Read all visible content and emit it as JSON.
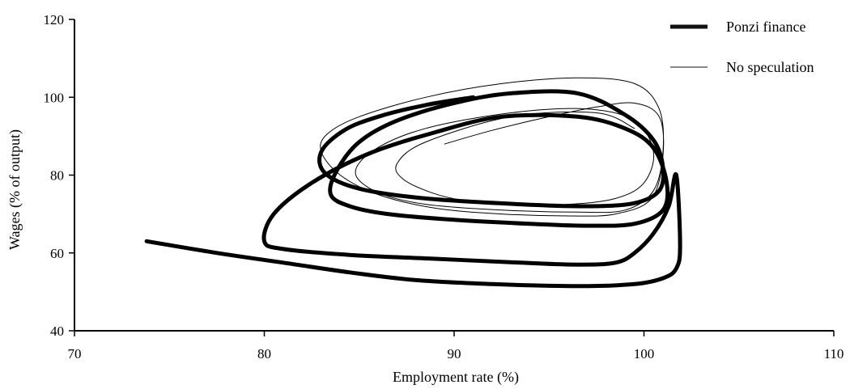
{
  "chart_data": {
    "type": "line",
    "title": "",
    "xlabel": "Employment rate (%)",
    "ylabel": "Wages (% of output)",
    "xlim": [
      70,
      110
    ],
    "ylim": [
      40,
      120
    ],
    "xticks": [
      70,
      80,
      90,
      100,
      110
    ],
    "yticks": [
      40,
      60,
      80,
      100,
      120
    ],
    "legend": {
      "position": "top-right",
      "entries": [
        {
          "label": "Ponzi finance",
          "style": "thick"
        },
        {
          "label": "No speculation",
          "style": "thin"
        }
      ]
    },
    "series": [
      {
        "name": "Ponzi finance",
        "color": "#111111",
        "x": [
          91.0,
          88.5,
          86.0,
          84.2,
          83.0,
          83.2,
          85.0,
          88.5,
          93.5,
          97.0,
          99.5,
          100.8,
          101.0,
          100.5,
          99.0,
          96.5,
          93.0,
          90.0,
          87.0,
          85.0,
          83.8,
          83.5,
          84.5,
          86.5,
          90.0,
          94.0,
          97.0,
          99.5,
          101.0,
          101.2,
          100.5,
          99.0,
          96.5,
          92.5,
          89.0,
          85.5,
          82.5,
          80.5,
          80.0,
          81.0,
          84.5,
          89.0,
          93.5,
          96.5,
          98.5,
          99.5,
          100.5,
          101.3,
          101.7,
          101.9,
          101.7,
          101.0,
          99.5,
          96.5,
          92.0,
          88.0,
          84.5,
          81.0,
          77.5,
          73.8
        ],
        "y": [
          100.0,
          98.0,
          95.0,
          91.5,
          86.0,
          80.5,
          76.5,
          74.0,
          72.5,
          72.0,
          72.8,
          76.0,
          82.0,
          89.0,
          95.5,
          101.0,
          101.0,
          98.5,
          94.0,
          88.5,
          81.0,
          75.0,
          72.0,
          70.0,
          68.5,
          67.5,
          67.0,
          67.5,
          71.0,
          78.0,
          87.0,
          92.0,
          95.0,
          95.0,
          91.0,
          85.5,
          78.0,
          70.0,
          63.0,
          61.0,
          59.5,
          58.5,
          57.5,
          57.0,
          57.5,
          60.0,
          65.0,
          72.0,
          80.0,
          62.0,
          56.0,
          53.5,
          52.0,
          51.5,
          52.0,
          53.0,
          55.0,
          57.5,
          60.0,
          63.0
        ]
      },
      {
        "name": "No speculation",
        "color": "#222222",
        "x": [
          89.5,
          92.0,
          95.0,
          97.5,
          99.5,
          100.8,
          101.0,
          100.4,
          98.5,
          96.0,
          92.5,
          89.0,
          86.0,
          84.0,
          83.0,
          83.3,
          85.0,
          88.5,
          92.5,
          96.5,
          99.5,
          100.8,
          101.0,
          100.5,
          99.0,
          96.5,
          92.5,
          88.5,
          86.0,
          84.8,
          85.8,
          88.5,
          93.0,
          97.0,
          99.5,
          100.5,
          100.0,
          98.5,
          96.0,
          93.0,
          90.5,
          88.8,
          87.3,
          87.0,
          88.5,
          93.0,
          97.5,
          99.5
        ],
        "y": [
          88.0,
          91.5,
          95.0,
          97.5,
          98.5,
          95.0,
          85.0,
          74.0,
          70.0,
          69.5,
          70.0,
          71.5,
          75.0,
          80.0,
          86.0,
          90.5,
          95.0,
          100.0,
          103.5,
          105.0,
          103.5,
          97.0,
          86.0,
          76.0,
          71.0,
          70.5,
          71.0,
          72.5,
          75.5,
          80.5,
          86.5,
          92.0,
          96.0,
          97.0,
          94.0,
          86.0,
          78.0,
          74.0,
          72.5,
          72.5,
          73.5,
          75.5,
          79.0,
          83.0,
          88.5,
          95.0,
          96.0,
          92.0
        ]
      }
    ]
  }
}
